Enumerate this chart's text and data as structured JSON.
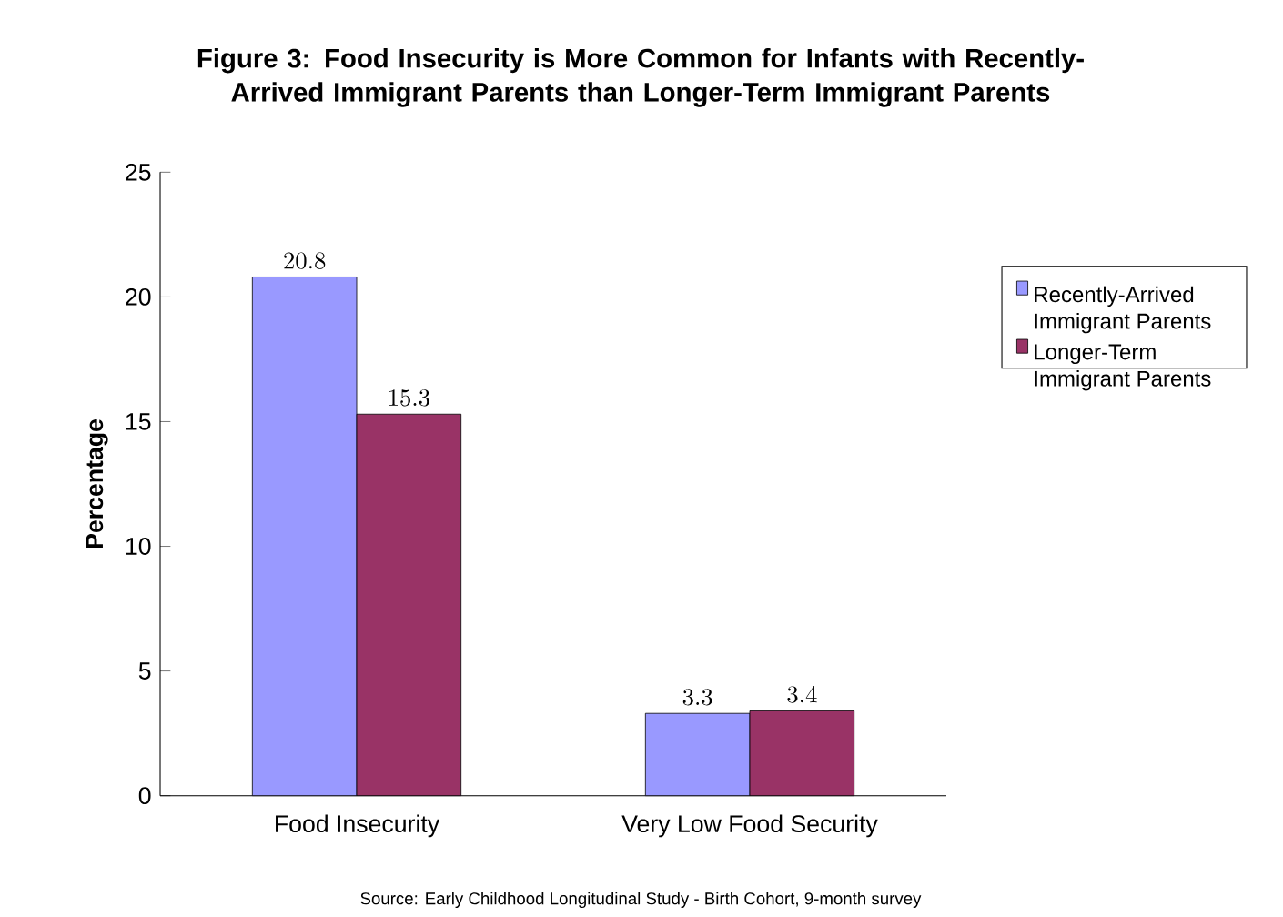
{
  "chart_data": {
    "type": "bar",
    "title": "Figure 3: Food Insecurity is More Common for Infants with Recently-Arrived Immigrant Parents than Longer-Term Immigrant Parents",
    "ylabel": "Percentage",
    "categories": [
      "Food Insecurity",
      "Very Low Food Security"
    ],
    "series": [
      {
        "name": "Recently-Arrived Immigrant Parents",
        "color": "#9999ff",
        "values": [
          20.8,
          3.3
        ]
      },
      {
        "name": "Longer-Term Immigrant Parents",
        "color": "#993366",
        "values": [
          15.3,
          3.4
        ]
      }
    ],
    "ylim": [
      0,
      25
    ],
    "yticks": [
      0,
      5,
      10,
      15,
      20,
      25
    ],
    "grid": false,
    "legend": "right",
    "data_labels": true,
    "annotations": [
      "Source:  Early Childhood Longitudinal Study - Birth Cohort, 9-month survey"
    ]
  }
}
